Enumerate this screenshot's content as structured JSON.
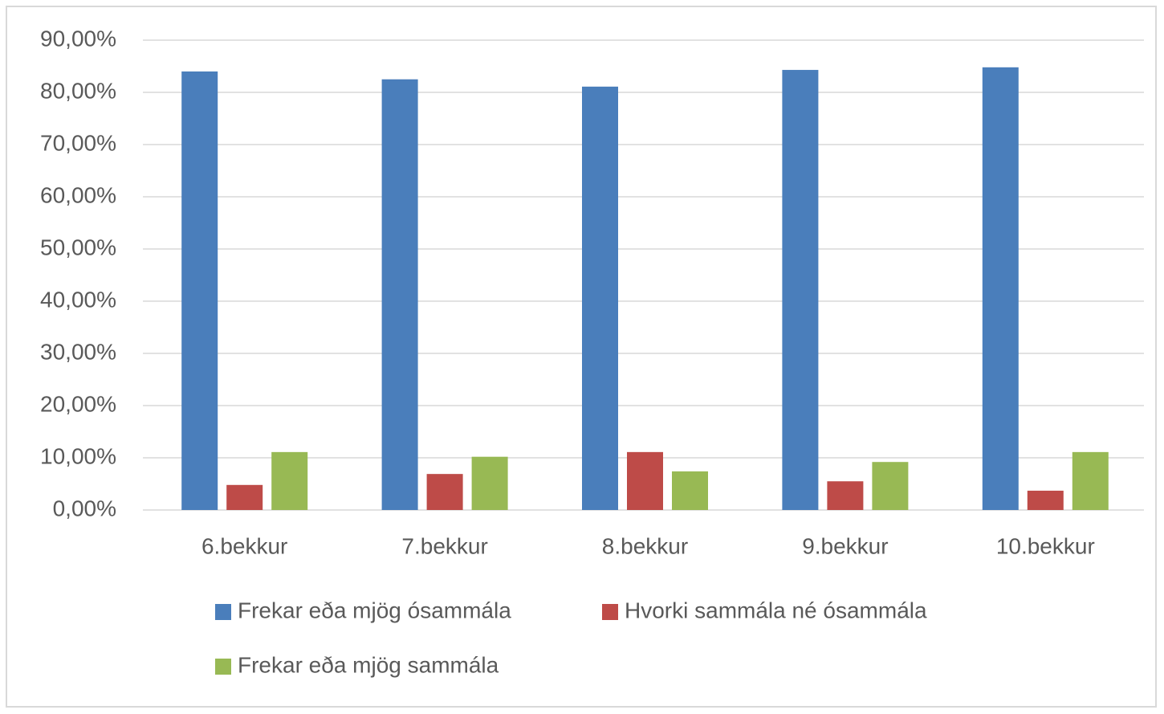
{
  "chart_data": {
    "type": "bar",
    "categories": [
      "6.bekkur",
      "7.bekkur",
      "8.bekkur",
      "9.bekkur",
      "10.bekkur"
    ],
    "series": [
      {
        "name": "Frekar eða mjög ósammála",
        "color": "#4a7ebb",
        "values": [
          84.0,
          82.5,
          81.1,
          84.3,
          84.8
        ]
      },
      {
        "name": "Hvorki sammála né ósammála",
        "color": "#be4b48",
        "values": [
          4.8,
          6.9,
          11.1,
          5.5,
          3.7
        ]
      },
      {
        "name": "Frekar eða mjög sammála",
        "color": "#98b954",
        "values": [
          11.1,
          10.2,
          7.4,
          9.2,
          11.1
        ]
      }
    ],
    "ylim": [
      0,
      90
    ],
    "yticks": [
      {
        "value": 0,
        "label": "0,00%"
      },
      {
        "value": 10,
        "label": "10,00%"
      },
      {
        "value": 20,
        "label": "20,00%"
      },
      {
        "value": 30,
        "label": "30,00%"
      },
      {
        "value": 40,
        "label": "40,00%"
      },
      {
        "value": 50,
        "label": "50,00%"
      },
      {
        "value": 60,
        "label": "60,00%"
      },
      {
        "value": 70,
        "label": "70,00%"
      },
      {
        "value": 80,
        "label": "80,00%"
      },
      {
        "value": 90,
        "label": "90,00%"
      }
    ],
    "grid": true,
    "legend": "bottom"
  }
}
